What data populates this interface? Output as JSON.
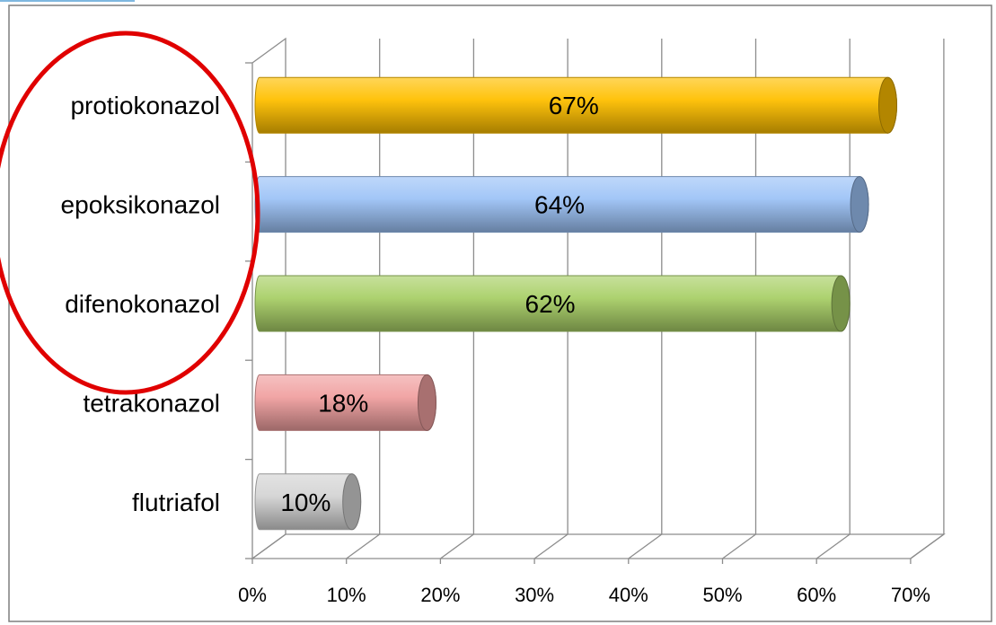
{
  "chart_data": {
    "type": "bar",
    "orientation": "horizontal",
    "style": "3d-cylinder",
    "categories": [
      "protiokonazol",
      "epoksikonazol",
      "difenokonazol",
      "tetrakonazol",
      "flutriafol"
    ],
    "values": [
      67,
      64,
      62,
      18,
      10
    ],
    "data_labels": [
      "67%",
      "64%",
      "62%",
      "18%",
      "10%"
    ],
    "colors": [
      "#ffc000",
      "#9dc3f7",
      "#a9d067",
      "#f0a0a0",
      "#d4d4d4"
    ],
    "x_ticks": [
      "0%",
      "10%",
      "20%",
      "30%",
      "40%",
      "50%",
      "60%",
      "70%"
    ],
    "xlim": [
      0,
      70
    ],
    "grid": true,
    "legend": "none",
    "annotation": {
      "type": "ellipse",
      "color": "#e00000",
      "encloses": [
        "protiokonazol",
        "epoksikonazol",
        "difenokonazol"
      ]
    }
  }
}
